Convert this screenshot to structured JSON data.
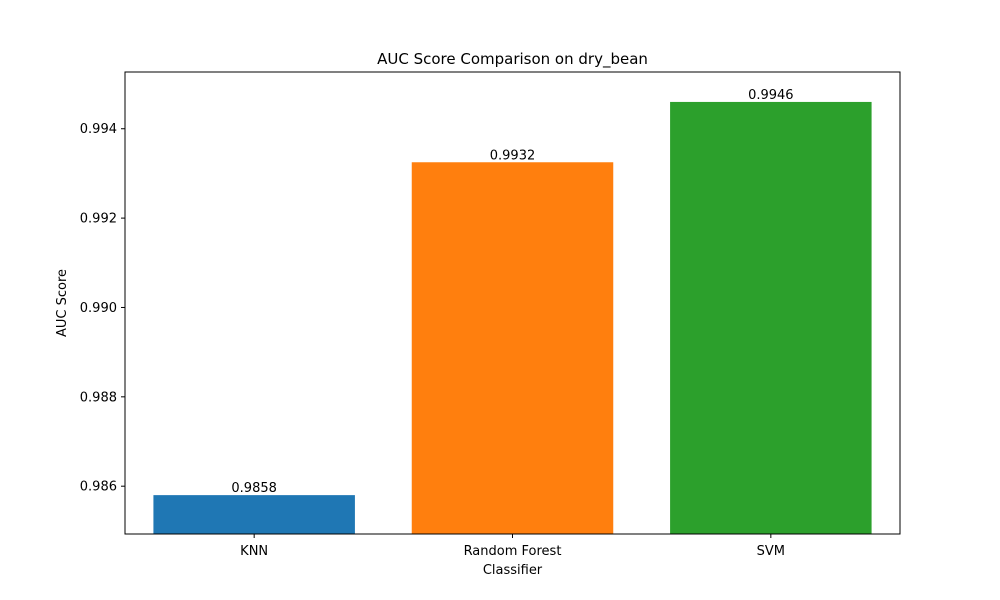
{
  "chart_data": {
    "type": "bar",
    "title": "AUC Score Comparison on dry_bean",
    "xlabel": "Classifier",
    "ylabel": "AUC Score",
    "categories": [
      "KNN",
      "Random Forest",
      "SVM"
    ],
    "values": [
      0.9858,
      0.99325,
      0.9946
    ],
    "data_labels": [
      "0.9858",
      "0.9932",
      "0.9946"
    ],
    "colors": [
      "#1f77b4",
      "#ff7f0e",
      "#2ca02c"
    ],
    "ylim": [
      0.98493,
      0.99527
    ],
    "yticks": [
      0.986,
      0.988,
      0.99,
      0.992,
      0.994
    ],
    "ytick_labels": [
      "0.986",
      "0.988",
      "0.990",
      "0.992",
      "0.994"
    ],
    "grid": false,
    "legend": false
  }
}
